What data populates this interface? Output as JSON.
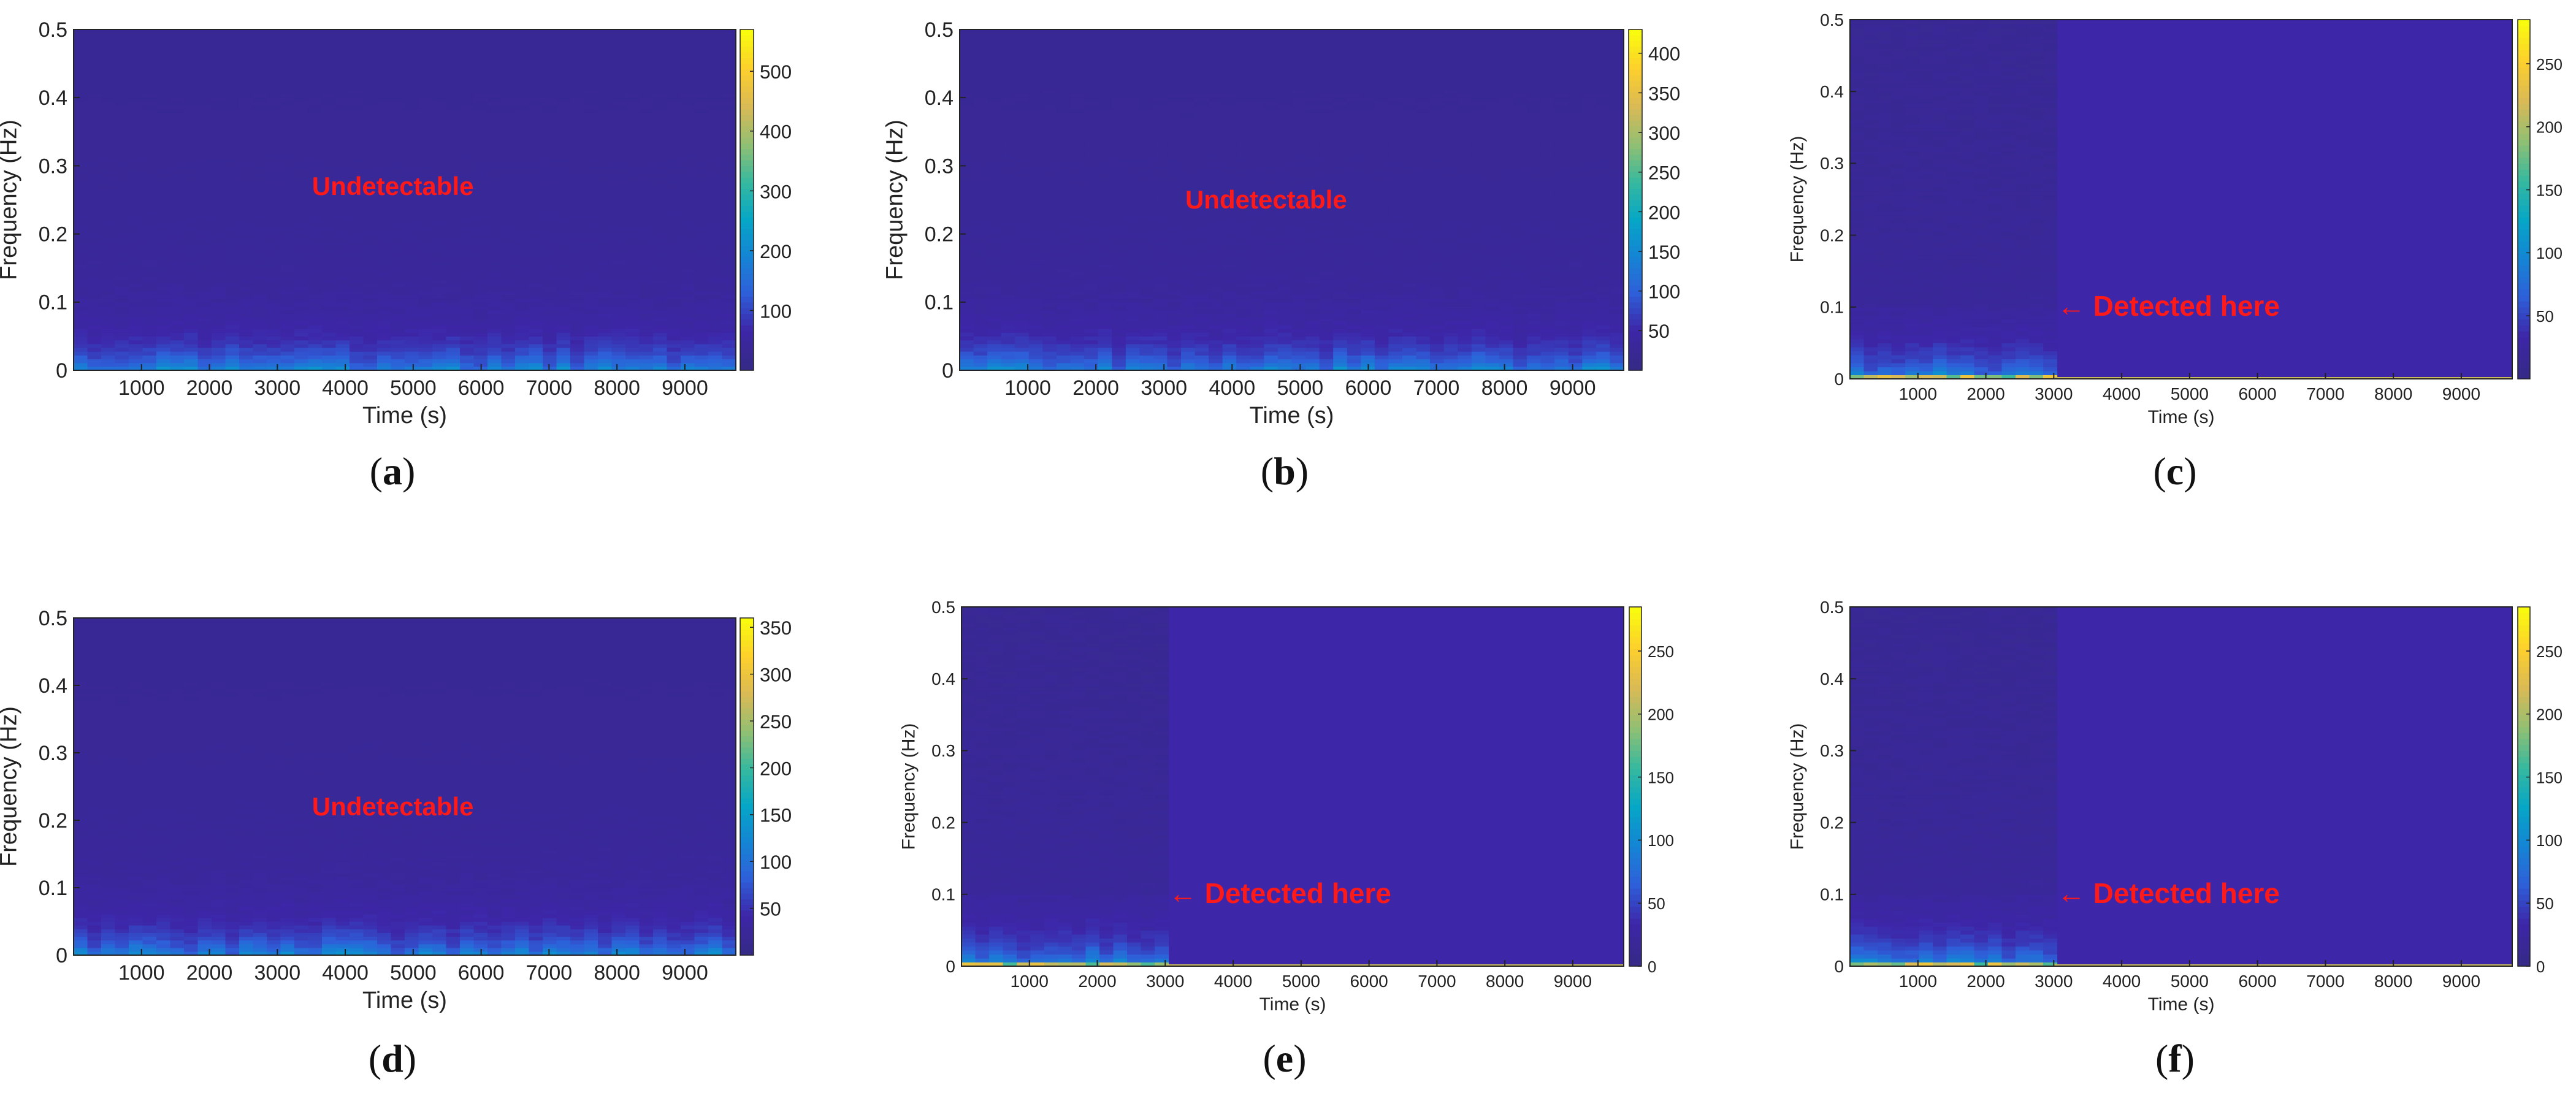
{
  "chart_data": [
    {
      "panel_label": "a",
      "type": "heatmap",
      "xlabel": "Time (s)",
      "ylabel": "Frequency (Hz)",
      "xlim": [
        0,
        9750
      ],
      "ylim": [
        0,
        0.5
      ],
      "xticks": [
        "1000",
        "2000",
        "3000",
        "4000",
        "5000",
        "6000",
        "7000",
        "8000",
        "9000"
      ],
      "yticks": [
        "0",
        "0.1",
        "0.2",
        "0.3",
        "0.4",
        "0.5"
      ],
      "colorbar": {
        "min": 0,
        "max": 570,
        "ticks": [
          "100",
          "200",
          "300",
          "400",
          "500"
        ]
      },
      "annotation": {
        "text": "Undetectable",
        "x": 4700,
        "y": 0.27,
        "color": "#ff1a1a"
      },
      "detected_until": null
    },
    {
      "panel_label": "b",
      "type": "heatmap",
      "xlabel": "Time (s)",
      "ylabel": "Frequency (Hz)",
      "xlim": [
        0,
        9750
      ],
      "ylim": [
        0,
        0.5
      ],
      "xticks": [
        "1000",
        "2000",
        "3000",
        "4000",
        "5000",
        "6000",
        "7000",
        "8000",
        "9000"
      ],
      "yticks": [
        "0",
        "0.1",
        "0.2",
        "0.3",
        "0.4",
        "0.5"
      ],
      "colorbar": {
        "min": 0,
        "max": 430,
        "ticks": [
          "50",
          "100",
          "150",
          "200",
          "250",
          "300",
          "350",
          "400"
        ]
      },
      "annotation": {
        "text": "Undetectable",
        "x": 4500,
        "y": 0.25,
        "color": "#ff1a1a"
      },
      "detected_until": null
    },
    {
      "panel_label": "c",
      "type": "heatmap",
      "xlabel": "Time (s)",
      "ylabel": "Frequency (Hz)",
      "xlim": [
        0,
        9750
      ],
      "ylim": [
        0,
        0.5
      ],
      "xticks": [
        "1000",
        "2000",
        "3000",
        "4000",
        "5000",
        "6000",
        "7000",
        "8000",
        "9000"
      ],
      "yticks": [
        "0",
        "0.1",
        "0.2",
        "0.3",
        "0.4",
        "0.5"
      ],
      "colorbar": {
        "min": 0,
        "max": 285,
        "ticks": [
          "50",
          "100",
          "150",
          "200",
          "250"
        ]
      },
      "annotation": {
        "text": "← Detected here",
        "x": 3050,
        "y": 0.1,
        "color": "#ff1a1a"
      },
      "detected_until": 3000
    },
    {
      "panel_label": "d",
      "type": "heatmap",
      "xlabel": "Time (s)",
      "ylabel": "Frequency (Hz)",
      "xlim": [
        0,
        9750
      ],
      "ylim": [
        0,
        0.5
      ],
      "xticks": [
        "1000",
        "2000",
        "3000",
        "4000",
        "5000",
        "6000",
        "7000",
        "8000",
        "9000"
      ],
      "yticks": [
        "0",
        "0.1",
        "0.2",
        "0.3",
        "0.4",
        "0.5"
      ],
      "colorbar": {
        "min": 0,
        "max": 360,
        "ticks": [
          "50",
          "100",
          "150",
          "200",
          "250",
          "300",
          "350"
        ]
      },
      "annotation": {
        "text": "Undetectable",
        "x": 4700,
        "y": 0.22,
        "color": "#ff1a1a"
      },
      "detected_until": null
    },
    {
      "panel_label": "e",
      "type": "heatmap",
      "xlabel": "Time (s)",
      "ylabel": "Frequency (Hz)",
      "xlim": [
        0,
        9750
      ],
      "ylim": [
        0,
        0.5
      ],
      "xticks": [
        "1000",
        "2000",
        "3000",
        "4000",
        "5000",
        "6000",
        "7000",
        "8000",
        "9000"
      ],
      "yticks": [
        "0",
        "0.1",
        "0.2",
        "0.3",
        "0.4",
        "0.5"
      ],
      "colorbar": {
        "min": 0,
        "max": 285,
        "ticks": [
          "0",
          "50",
          "100",
          "150",
          "200",
          "250"
        ]
      },
      "annotation": {
        "text": "← Detected here",
        "x": 3050,
        "y": 0.1,
        "color": "#ff1a1a"
      },
      "detected_until": 3000
    },
    {
      "panel_label": "f",
      "type": "heatmap",
      "xlabel": "Time (s)",
      "ylabel": "Frequency (Hz)",
      "xlim": [
        0,
        9750
      ],
      "ylim": [
        0,
        0.5
      ],
      "xticks": [
        "1000",
        "2000",
        "3000",
        "4000",
        "5000",
        "6000",
        "7000",
        "8000",
        "9000"
      ],
      "yticks": [
        "0",
        "0.1",
        "0.2",
        "0.3",
        "0.4",
        "0.5"
      ],
      "colorbar": {
        "min": 0,
        "max": 285,
        "ticks": [
          "0",
          "50",
          "100",
          "150",
          "200",
          "250"
        ]
      },
      "annotation": {
        "text": "← Detected here",
        "x": 3050,
        "y": 0.1,
        "color": "#ff1a1a"
      },
      "detected_until": 3000
    }
  ],
  "colors": {
    "background_field": "#3d26a8",
    "annotation": "#ff1a1a",
    "parula_stops": [
      "#352a87",
      "#3d26a8",
      "#2e5fd9",
      "#1485d4",
      "#06a7c6",
      "#38b99e",
      "#92bf73",
      "#d9ba56",
      "#fcce2e",
      "#f9fb0e"
    ]
  }
}
